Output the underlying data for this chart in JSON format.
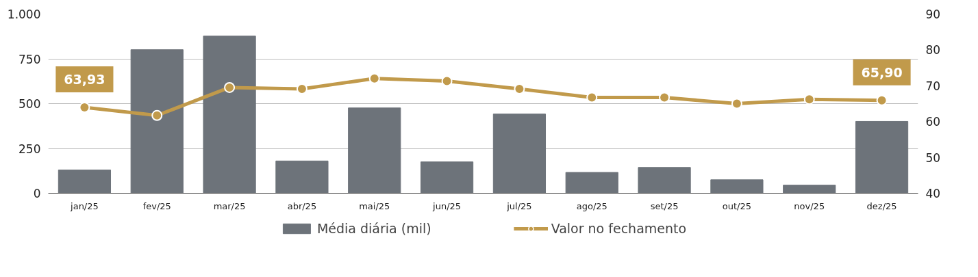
{
  "chart_data": {
    "type": "bar",
    "categories": [
      "jan/25",
      "fev/25",
      "mar/25",
      "abr/25",
      "mai/25",
      "jun/25",
      "jul/25",
      "ago/25",
      "set/25",
      "out/25",
      "nov/25",
      "dez/25"
    ],
    "series": [
      {
        "name": "Média diária (mil)",
        "color": "#6d737a",
        "values": [
          130,
          801,
          877,
          180,
          476,
          175,
          442,
          116,
          144,
          75,
          45,
          401
        ]
      },
      {
        "name": "Valor no fechamento",
        "type": "line",
        "axis": "y2",
        "color": "#c19a4b",
        "marker": "circle",
        "values": [
          63.93,
          61.7,
          69.5,
          69.1,
          72.0,
          71.3,
          69.1,
          66.7,
          66.7,
          65.0,
          66.2,
          65.9
        ],
        "value_labels": [
          "63,93",
          null,
          null,
          null,
          null,
          null,
          null,
          null,
          null,
          null,
          null,
          "65,90"
        ]
      }
    ],
    "ylim": [
      0,
      1000
    ],
    "yticks": [
      0,
      250,
      500,
      750,
      {
        "value": 1000,
        "label": "1.000"
      }
    ],
    "y2lim": [
      40,
      90
    ],
    "y2ticks": [
      40,
      50,
      60,
      70,
      80,
      90
    ],
    "grid": "y",
    "legend": "bottom",
    "line_style": "solid"
  }
}
